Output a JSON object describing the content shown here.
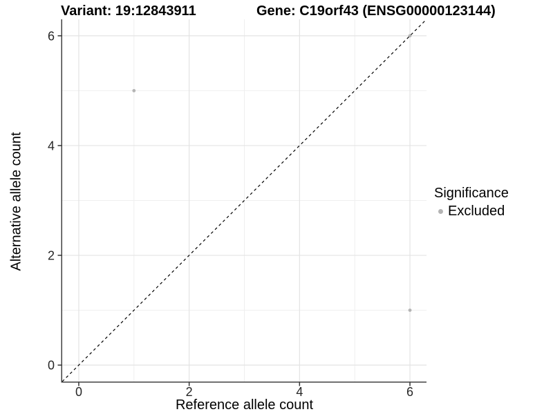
{
  "header": {
    "variant_title": "Variant: 19:12843911",
    "gene_title": "Gene: C19orf43 (ENSG00000123144)"
  },
  "legend": {
    "title": "Significance",
    "items": [
      {
        "label": "Excluded",
        "color": "#b4b4b4"
      }
    ]
  },
  "chart_data": {
    "type": "scatter",
    "title_left": "Variant: 19:12843911",
    "title_right": "Gene: C19orf43 (ENSG00000123144)",
    "xlabel": "Reference allele count",
    "ylabel": "Alternative allele count",
    "xlim": [
      -0.3,
      6.3
    ],
    "ylim": [
      -0.3,
      6.3
    ],
    "xticks": [
      0,
      2,
      4,
      6
    ],
    "yticks": [
      0,
      2,
      4,
      6
    ],
    "x_minor": [
      1,
      3,
      5
    ],
    "y_minor": [
      1,
      3,
      5
    ],
    "grid": true,
    "legend_position": "right",
    "series": [
      {
        "name": "Excluded",
        "color": "#b4b4b4",
        "points": [
          {
            "x": 1,
            "y": 5
          },
          {
            "x": 6,
            "y": 1
          },
          {
            "x": 6,
            "y": 6
          }
        ]
      }
    ],
    "reference_line": {
      "style": "dashed",
      "slope": 1,
      "intercept": 0,
      "color": "#000000"
    }
  },
  "colors": {
    "point": "#b4b4b4",
    "grid_major": "#e3e3e3",
    "grid_minor": "#efefef",
    "axis_line": "#404040",
    "tick_mark": "#333333",
    "tick_text": "#262626",
    "reference_line": "#000000",
    "background": "#ffffff"
  }
}
